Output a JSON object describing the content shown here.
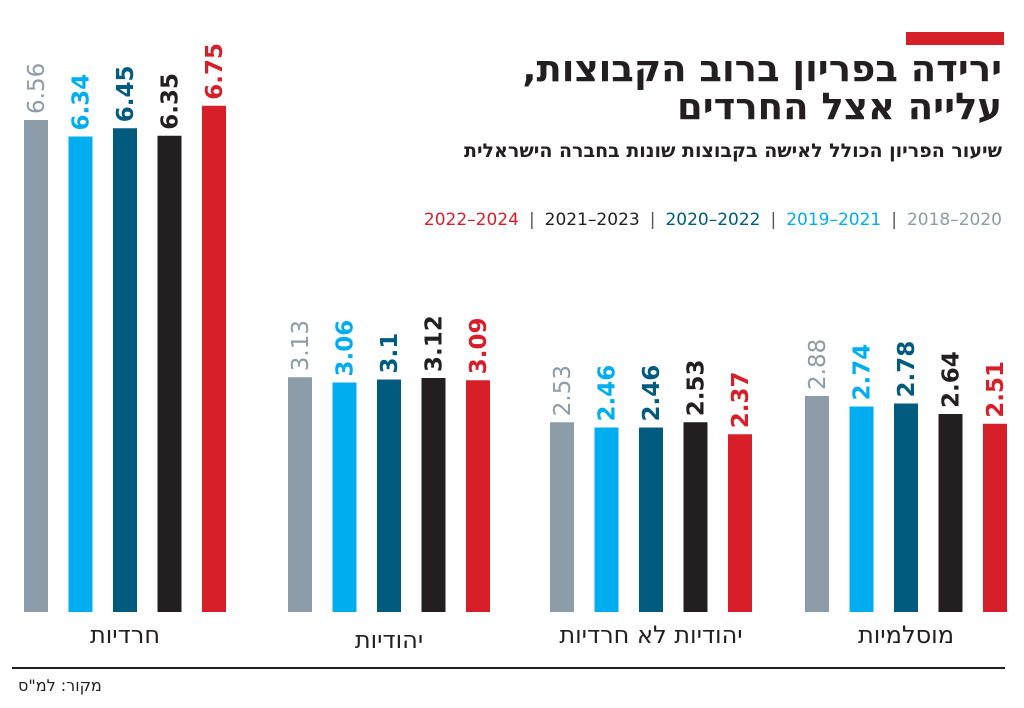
{
  "chart_data": {
    "type": "bar",
    "title": "ירידה בפריון ברוב הקבוצות, עלייה אצל החרדים",
    "title_lines": [
      "ירידה בפריון ברוב הקבוצות,",
      "עלייה אצל החרדים"
    ],
    "subtitle": "שיעור הפריון הכולל לאישה בקבוצות שונות בחברה הישראלית",
    "categories": [
      "חרדיות",
      "יהודיות",
      "יהודיות לא חרדיות",
      "מוסלמיות"
    ],
    "series": [
      {
        "name": "2018–2020",
        "color": "#8c9ca8",
        "values": [
          6.56,
          3.13,
          2.53,
          2.88
        ]
      },
      {
        "name": "2019–2021",
        "color": "#00aeef",
        "values": [
          6.34,
          3.06,
          2.46,
          2.74
        ]
      },
      {
        "name": "2020–2022",
        "color": "#005b7f",
        "values": [
          6.45,
          3.1,
          2.46,
          2.78
        ]
      },
      {
        "name": "2021–2023",
        "color": "#231f20",
        "values": [
          6.35,
          3.12,
          2.53,
          2.64
        ]
      },
      {
        "name": "2022–2024",
        "color": "#d71f2a",
        "values": [
          6.75,
          3.09,
          2.37,
          2.51
        ]
      }
    ],
    "ylim": [
      0,
      7
    ],
    "grid": false,
    "legend_position": "top-right",
    "data_labels": true,
    "source": "מקור: למ\"ס"
  }
}
